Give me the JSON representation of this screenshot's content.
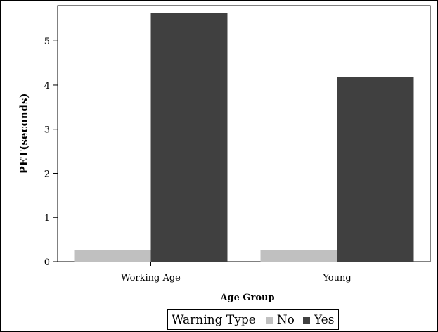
{
  "chart_data": {
    "type": "bar",
    "categories": [
      "Working Age",
      "Young"
    ],
    "series": [
      {
        "name": "No",
        "values": [
          0.27,
          0.27
        ],
        "color": "#c0c0c0"
      },
      {
        "name": "Yes",
        "values": [
          5.63,
          4.18
        ],
        "color": "#404040"
      }
    ],
    "title": "",
    "xlabel": "Age Group",
    "ylabel": "PET(seconds)",
    "ylim": [
      0,
      5.8
    ],
    "yticks": [
      0,
      1,
      2,
      3,
      4,
      5
    ],
    "grid": false,
    "legend": {
      "title": "Warning Type",
      "placement": "bottom-center"
    }
  }
}
